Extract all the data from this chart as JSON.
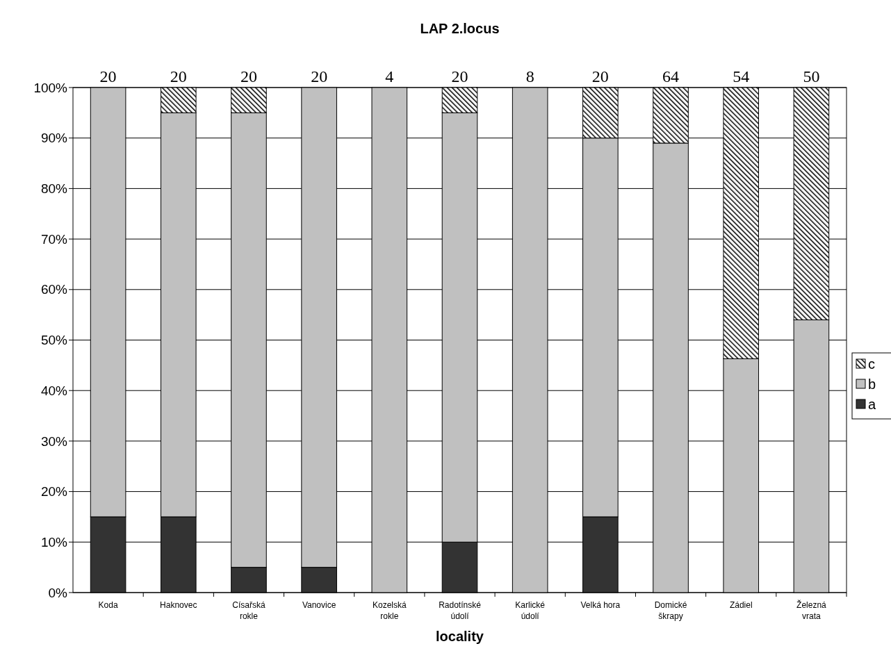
{
  "chart_data": {
    "type": "bar",
    "title": "LAP 2.locus",
    "xlabel": "locality",
    "stacked": true,
    "categories": [
      "Koda",
      "Haknovec",
      "Císařská\nrokle",
      "Vanovice",
      "Kozelská\nrokle",
      "Radotínské\núdolí",
      "Karlické\núdolí",
      "Velká hora",
      "Domické\nškrapy",
      "Zádiel",
      "Železná\nvrata"
    ],
    "series": [
      {
        "name": "a",
        "color": "#333333",
        "values": [
          15,
          15,
          5,
          5,
          0,
          10,
          0,
          15,
          0,
          0,
          0
        ]
      },
      {
        "name": "b",
        "color": "#c0c0c0",
        "values": [
          85,
          80,
          90,
          95,
          100,
          85,
          100,
          75,
          89,
          46.3,
          54
        ]
      },
      {
        "name": "c",
        "color": "#000000",
        "values": [
          0,
          5,
          5,
          0,
          0,
          5,
          0,
          10,
          11,
          53.7,
          46
        ]
      }
    ],
    "annotations": [
      {
        "text": "20",
        "x": "Koda",
        "y": 100
      },
      {
        "text": "20",
        "x": "Haknovec",
        "y": 100
      },
      {
        "text": "20",
        "x": "Císařská\nrokle",
        "y": 100
      },
      {
        "text": "20",
        "x": "Vanovice",
        "y": 100
      },
      {
        "text": "4",
        "x": "Kozelská\nrokle",
        "y": 100
      },
      {
        "text": "20",
        "x": "Radotínské\núdolí",
        "y": 100
      },
      {
        "text": "8",
        "x": "Karlické\núdolí",
        "y": 100
      },
      {
        "text": "20",
        "x": "Velká hora",
        "y": 100
      },
      {
        "text": "64",
        "x": "Domické\nškrapy",
        "y": 100
      },
      {
        "text": "54",
        "x": "Zádiel",
        "y": 100
      },
      {
        "text": "50",
        "x": "Železná\nvrata",
        "y": 100
      }
    ],
    "ylim": [
      0,
      100
    ],
    "yticks": [
      {
        "value": 0,
        "label": "0%"
      },
      {
        "value": 10,
        "label": "10%"
      },
      {
        "value": 20,
        "label": "20%"
      },
      {
        "value": 30,
        "label": "30%"
      },
      {
        "value": 40,
        "label": "40%"
      },
      {
        "value": 50,
        "label": "50%"
      },
      {
        "value": 60,
        "label": "60%"
      },
      {
        "value": 70,
        "label": "70%"
      },
      {
        "value": 80,
        "label": "80%"
      },
      {
        "value": 90,
        "label": "90%"
      },
      {
        "value": 100,
        "label": "100%"
      }
    ],
    "grid": "y",
    "legend": "right"
  }
}
